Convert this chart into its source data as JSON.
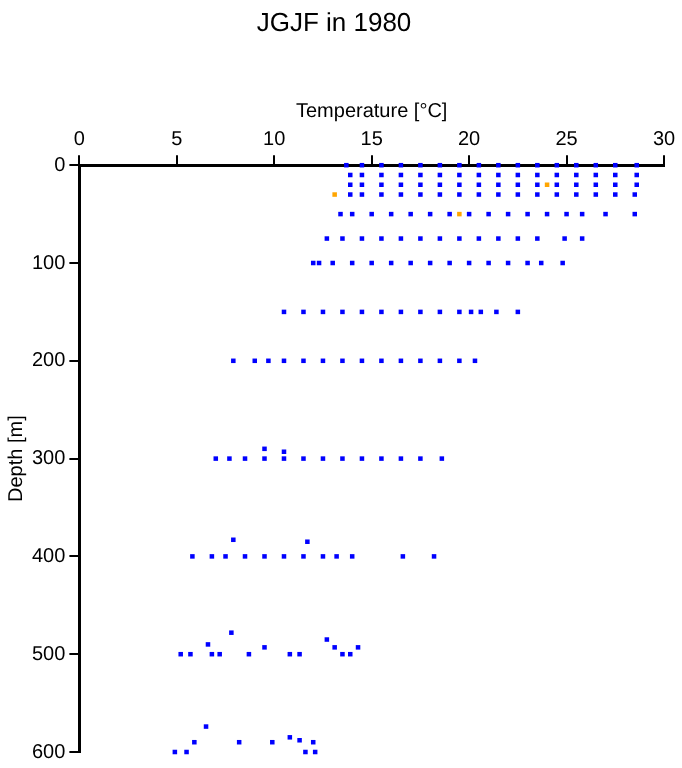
{
  "chart_data": {
    "type": "scatter",
    "title": "JGJF in 1980",
    "xlabel": "Temperature [°C]",
    "ylabel": "Depth [m]",
    "xlim": [
      0,
      30
    ],
    "xticks": [
      0,
      5,
      10,
      15,
      20,
      25,
      30
    ],
    "ylim": [
      600,
      0
    ],
    "yticks": [
      0,
      100,
      200,
      300,
      400,
      500,
      600
    ],
    "grid": false,
    "legend": false,
    "marker": "square",
    "series": [
      {
        "color": "#0000ff",
        "x": [
          13.7,
          14.5,
          15.5,
          16.5,
          17.5,
          18.5,
          19.5,
          20.5,
          21.5,
          22.5,
          23.5,
          24.5,
          25.5,
          26.5,
          27.5,
          28.6,
          13.9,
          14.5,
          15.5,
          16.5,
          17.5,
          18.5,
          19.5,
          20.5,
          21.5,
          22.5,
          23.5,
          24.5,
          25.5,
          26.5,
          27.5,
          28.6,
          13.9,
          14.5,
          15.5,
          16.5,
          17.5,
          18.5,
          19.5,
          20.5,
          21.5,
          22.5,
          23.5,
          24.5,
          25.5,
          26.5,
          27.5,
          28.6,
          13.9,
          14.5,
          15.5,
          16.5,
          17.5,
          18.5,
          19.5,
          20.5,
          21.5,
          22.5,
          23.5,
          24.5,
          25.5,
          26.5,
          27.5,
          28.5,
          13.4,
          14.0,
          15.0,
          16.0,
          17.0,
          18.0,
          19.0,
          20.0,
          21.0,
          22.0,
          23.0,
          24.0,
          25.0,
          25.8,
          27.0,
          28.5,
          12.7,
          13.5,
          14.5,
          15.5,
          16.5,
          17.5,
          18.5,
          19.5,
          20.5,
          21.5,
          22.5,
          23.5,
          24.9,
          25.8,
          12.0,
          12.3,
          13,
          14,
          15,
          16,
          17,
          18,
          19,
          20,
          21,
          22,
          23,
          23.7,
          24.8,
          10.5,
          11.5,
          12.5,
          13.5,
          14.5,
          15.5,
          16.5,
          17.5,
          18.5,
          19.5,
          20.1,
          20.6,
          21.4,
          22.5,
          7.9,
          9.0,
          9.7,
          10.5,
          11.5,
          12.5,
          13.5,
          14.5,
          15.5,
          16.5,
          17.5,
          18.5,
          19.5,
          20.3,
          7.0,
          7.7,
          8.5,
          9.5,
          10.5,
          11.5,
          12.5,
          13.5,
          14.5,
          15.5,
          16.5,
          17.5,
          18.6,
          9.5,
          10.5,
          5.8,
          6.8,
          7.5,
          8.5,
          9.5,
          10.5,
          11.5,
          12.5,
          13.2,
          14.0,
          16.6,
          18.2,
          7.9,
          11.7,
          5.2,
          5.7,
          6.6,
          6.8,
          7.2,
          7.8,
          8.7,
          9.5,
          10.8,
          11.3,
          12.7,
          13.1,
          13.5,
          13.9,
          14.3,
          4.9,
          5.5,
          5.9,
          6.5,
          8.2,
          9.9,
          10.8,
          11.3,
          11.6,
          12.0,
          12.1
        ],
        "values": [
          0,
          0,
          0,
          0,
          0,
          0,
          0,
          0,
          0,
          0,
          0,
          0,
          0,
          0,
          0,
          0,
          10,
          10,
          10,
          10,
          10,
          10,
          10,
          10,
          10,
          10,
          10,
          10,
          10,
          10,
          10,
          10,
          20,
          20,
          20,
          20,
          20,
          20,
          20,
          20,
          20,
          20,
          20,
          20,
          20,
          20,
          20,
          20,
          30,
          30,
          30,
          30,
          30,
          30,
          30,
          30,
          30,
          30,
          30,
          30,
          30,
          30,
          30,
          30,
          50,
          50,
          50,
          50,
          50,
          50,
          50,
          50,
          50,
          50,
          50,
          50,
          50,
          50,
          50,
          50,
          75,
          75,
          75,
          75,
          75,
          75,
          75,
          75,
          75,
          75,
          75,
          75,
          75,
          75,
          100,
          100,
          100,
          100,
          100,
          100,
          100,
          100,
          100,
          100,
          100,
          100,
          100,
          100,
          100,
          150,
          150,
          150,
          150,
          150,
          150,
          150,
          150,
          150,
          150,
          150,
          150,
          150,
          150,
          200,
          200,
          200,
          200,
          200,
          200,
          200,
          200,
          200,
          200,
          200,
          200,
          200,
          200,
          300,
          300,
          300,
          300,
          300,
          300,
          300,
          300,
          300,
          300,
          300,
          300,
          300,
          290,
          293,
          400,
          400,
          400,
          400,
          400,
          400,
          400,
          400,
          400,
          400,
          400,
          400,
          383,
          385,
          500,
          500,
          490,
          500,
          500,
          478,
          500,
          493,
          500,
          500,
          485,
          493,
          500,
          500,
          493,
          600,
          600,
          590,
          574,
          590,
          590,
          585,
          588,
          600,
          590,
          600
        ]
      },
      {
        "color": "#ffa500",
        "x": [
          24.0,
          13.1,
          19.5
        ],
        "values": [
          20,
          30,
          50
        ]
      }
    ]
  }
}
